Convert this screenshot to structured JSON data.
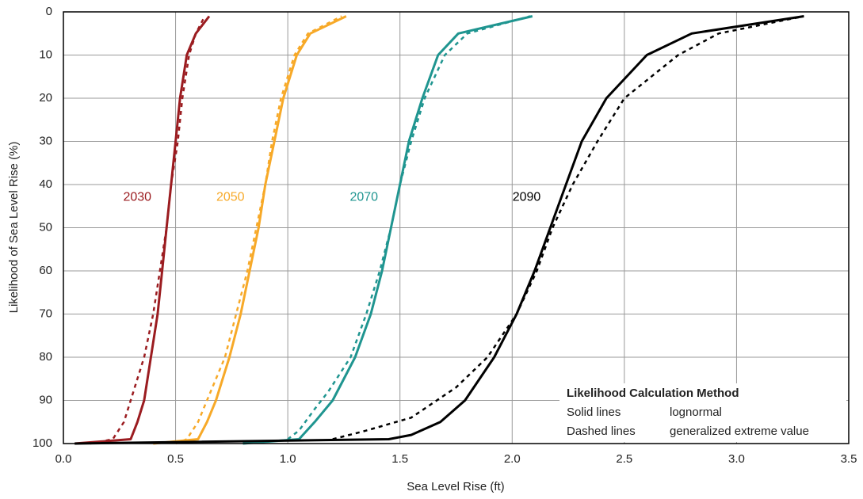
{
  "chart_data": {
    "type": "line",
    "x_label": "Sea Level Rise (ft)",
    "y_label": "Likelihood of Sea Level Rise (%)",
    "xlim": [
      0,
      3.5
    ],
    "xticks": [
      {
        "value": 0,
        "label": "0.0"
      },
      0.5,
      {
        "value": 1,
        "label": "1.0"
      },
      1.5,
      {
        "value": 2,
        "label": "2.0"
      },
      2.5,
      {
        "value": 3,
        "label": "3.0"
      },
      3.5
    ],
    "ylim": [
      100,
      0
    ],
    "yticks": [
      0,
      10,
      20,
      30,
      40,
      50,
      60,
      70,
      80,
      90,
      100
    ],
    "grid": true,
    "series": [
      {
        "name": "2030",
        "color": "#9b1c20",
        "lines": [
          {
            "dash": false,
            "x": [
              0.05,
              0.3,
              0.33,
              0.36,
              0.39,
              0.42,
              0.44,
              0.46,
              0.48,
              0.5,
              0.52,
              0.55,
              0.59,
              0.65
            ],
            "values": [
              100,
              99,
              95,
              90,
              80,
              70,
              60,
              50,
              40,
              30,
              20,
              10,
              5,
              1
            ]
          },
          {
            "dash": true,
            "x": [
              0.12,
              0.22,
              0.27,
              0.3,
              0.36,
              0.4,
              0.43,
              0.46,
              0.48,
              0.51,
              0.53,
              0.56,
              0.59,
              0.63
            ],
            "values": [
              100,
              99,
              95,
              90,
              80,
              70,
              60,
              50,
              40,
              30,
              20,
              10,
              5,
              1
            ]
          }
        ]
      },
      {
        "name": "2050",
        "color": "#f7a928",
        "lines": [
          {
            "dash": false,
            "x": [
              0.4,
              0.6,
              0.64,
              0.68,
              0.74,
              0.79,
              0.83,
              0.87,
              0.9,
              0.94,
              0.98,
              1.04,
              1.1,
              1.26
            ],
            "values": [
              100,
              99,
              95,
              90,
              80,
              70,
              60,
              50,
              40,
              30,
              20,
              10,
              5,
              1
            ]
          },
          {
            "dash": true,
            "x": [
              0.5,
              0.55,
              0.6,
              0.64,
              0.72,
              0.77,
              0.82,
              0.86,
              0.9,
              0.93,
              0.97,
              1.03,
              1.09,
              1.24
            ],
            "values": [
              100,
              99,
              95,
              90,
              80,
              70,
              60,
              50,
              40,
              30,
              20,
              10,
              5,
              1
            ]
          }
        ]
      },
      {
        "name": "2070",
        "color": "#1f9590",
        "lines": [
          {
            "dash": false,
            "x": [
              0.8,
              1.05,
              1.12,
              1.2,
              1.3,
              1.37,
              1.42,
              1.46,
              1.5,
              1.54,
              1.6,
              1.67,
              1.76,
              2.09
            ],
            "values": [
              100,
              99,
              95,
              90,
              80,
              70,
              60,
              50,
              40,
              30,
              20,
              10,
              5,
              1
            ]
          },
          {
            "dash": true,
            "x": [
              1.0,
              1.05,
              1.12,
              1.18,
              1.28,
              1.35,
              1.41,
              1.46,
              1.5,
              1.55,
              1.61,
              1.7,
              1.8,
              2.08
            ],
            "values": [
              99,
              97,
              92,
              88,
              80,
              70,
              60,
              50,
              40,
              30,
              20,
              10,
              5,
              1
            ]
          }
        ]
      },
      {
        "name": "2090",
        "color": "#000000",
        "lines": [
          {
            "dash": false,
            "x": [
              0.05,
              1.45,
              1.55,
              1.68,
              1.79,
              1.92,
              2.02,
              2.1,
              2.17,
              2.24,
              2.31,
              2.42,
              2.6,
              2.8,
              3.3
            ],
            "values": [
              100,
              99,
              98,
              95,
              90,
              80,
              70,
              60,
              50,
              40,
              30,
              20,
              10,
              5,
              1
            ]
          },
          {
            "dash": true,
            "x": [
              1.2,
              1.35,
              1.55,
              1.75,
              1.89,
              2.02,
              2.11,
              2.18,
              2.27,
              2.38,
              2.5,
              2.74,
              2.92,
              3.3
            ],
            "values": [
              99,
              97,
              94,
              87,
              80,
              70,
              60,
              50,
              40,
              30,
              20,
              10,
              5,
              1
            ]
          }
        ]
      }
    ],
    "legend": {
      "title": "Likelihood Calculation Method",
      "entries": [
        {
          "style": "Solid lines",
          "method": "lognormal"
        },
        {
          "style": "Dashed lines",
          "method": "generalized extreme value"
        }
      ]
    }
  }
}
